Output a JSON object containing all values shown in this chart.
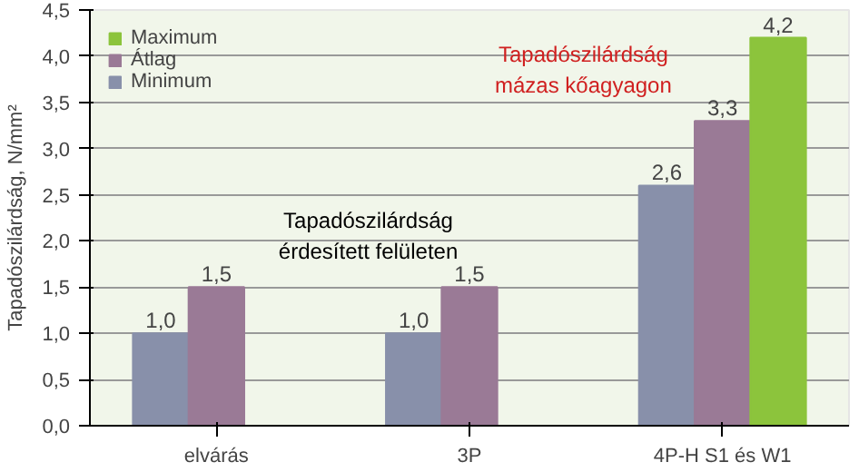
{
  "chart_data": {
    "type": "bar",
    "ylabel": "Tapadószilárdság, N/mm²",
    "categories": [
      "elvárás",
      "3P",
      "4P-H S1 és W1"
    ],
    "series": [
      {
        "name": "Minimum",
        "color": "#8890aa",
        "values": [
          1.0,
          1.0,
          2.6
        ],
        "value_labels": [
          "1,0",
          "1,0",
          "2,6"
        ]
      },
      {
        "name": "Átlag",
        "color": "#9a7a96",
        "values": [
          1.5,
          1.5,
          3.3
        ],
        "value_labels": [
          "1,5",
          "1,5",
          "3,3"
        ]
      },
      {
        "name": "Maximum",
        "color": "#8cc43c",
        "values": [
          null,
          null,
          4.2
        ],
        "value_labels": [
          null,
          null,
          "4,2"
        ]
      }
    ],
    "ylim": [
      0,
      4.5
    ],
    "yticks": [
      {
        "value": 0,
        "label": "0,0"
      },
      {
        "value": 0.5,
        "label": "0,5"
      },
      {
        "value": 1,
        "label": "1,0"
      },
      {
        "value": 1.5,
        "label": "1,5"
      },
      {
        "value": 2,
        "label": "2,0"
      },
      {
        "value": 2.5,
        "label": "2,5"
      },
      {
        "value": 3,
        "label": "3,0"
      },
      {
        "value": 3.5,
        "label": "3,5"
      },
      {
        "value": 4,
        "label": "4,0"
      },
      {
        "value": 4.5,
        "label": "4,5"
      }
    ],
    "grid": "y",
    "legend": "top left",
    "annotations": [
      "Tapadószilárdság\nérdesített felületen",
      "Tapadószilárdság\nmázas kőagyagon"
    ]
  }
}
